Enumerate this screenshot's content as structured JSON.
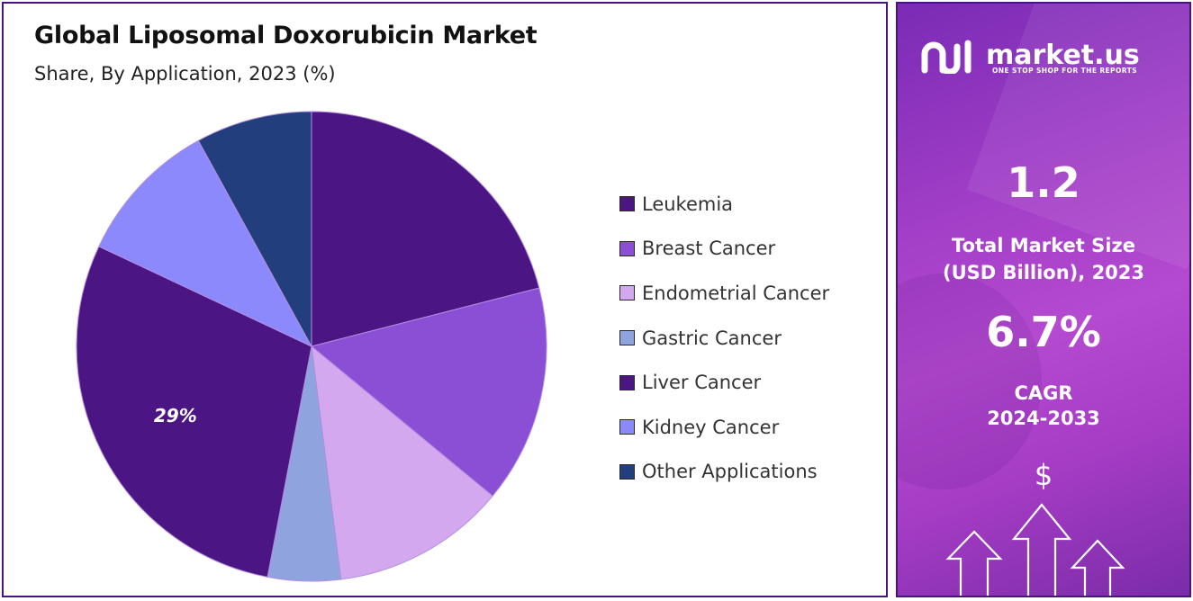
{
  "title": "Global Liposomal Doxorubicin Market",
  "subtitle": "Share, By Application, 2023 (%)",
  "chart_data": {
    "type": "pie",
    "title": "Global Liposomal Doxorubicin Market",
    "subtitle": "Share, By Application, 2023 (%)",
    "legend_position": "right",
    "slices": [
      {
        "label": "Leukemia",
        "value": 21,
        "color": "#4b1584"
      },
      {
        "label": "Breast Cancer",
        "value": 15,
        "color": "#8a4fd4"
      },
      {
        "label": "Endometrial Cancer",
        "value": 12,
        "color": "#d4a8ee"
      },
      {
        "label": "Gastric Cancer",
        "value": 5,
        "color": "#8fa3de"
      },
      {
        "label": "Liver Cancer",
        "value": 29,
        "color": "#4b1584"
      },
      {
        "label": "Kidney Cancer",
        "value": 10,
        "color": "#8b89fb"
      },
      {
        "label": "Other Applications",
        "value": 8,
        "color": "#223e7c"
      }
    ],
    "data_labels": [
      {
        "slice": "Liver Cancer",
        "text": "29%"
      }
    ]
  },
  "sidebar": {
    "brand": "market.us",
    "tagline": "ONE STOP SHOP FOR THE REPORTS",
    "market_size_value": "1.2",
    "market_size_label_line1": "Total Market Size",
    "market_size_label_line2": "(USD Billion), 2023",
    "cagr_value": "6.7%",
    "cagr_label_line1": "CAGR",
    "cagr_label_line2": "2024-2033",
    "currency_symbol": "$"
  }
}
